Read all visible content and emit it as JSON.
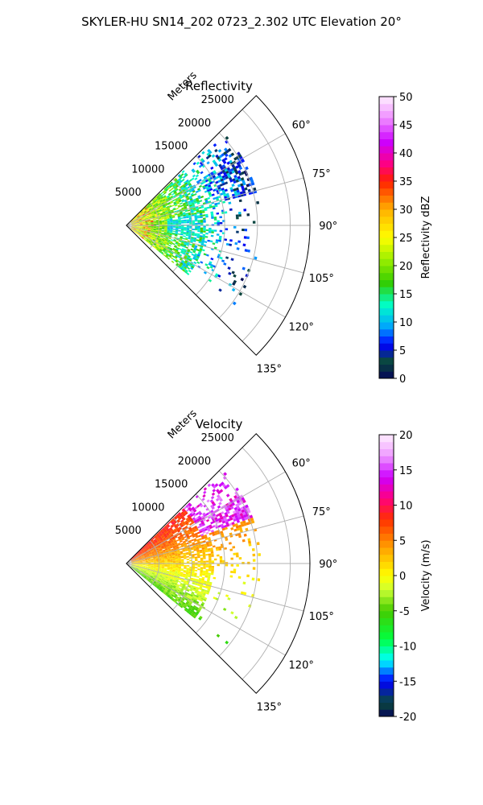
{
  "figure": {
    "title": "SKYLER-HU  SN14_202  0723_2.302 UTC Elevation 20°"
  },
  "chart_data": [
    {
      "type": "heatmap",
      "panel": "reflectivity",
      "title": "Reflectivity",
      "radial_label": "Meters",
      "radial_ticks": [
        "5000",
        "10000",
        "15000",
        "20000",
        "25000"
      ],
      "range_max": 28000,
      "angle_ticks": [
        "60°",
        "75°",
        "90°",
        "105°",
        "120°",
        "135°"
      ],
      "angle_range_deg": [
        45,
        135
      ],
      "grid": true,
      "colorbar": {
        "label": "Reflectivity dBZ",
        "min": 0,
        "max": 50,
        "ticks": [
          "0",
          "5",
          "10",
          "15",
          "20",
          "25",
          "30",
          "35",
          "40",
          "45",
          "50"
        ],
        "stops": [
          {
            "v": 0,
            "c": "#05055a"
          },
          {
            "v": 3,
            "c": "#0a4a3a"
          },
          {
            "v": 6,
            "c": "#0000ff"
          },
          {
            "v": 9,
            "c": "#00a0ff"
          },
          {
            "v": 13,
            "c": "#00ffc8"
          },
          {
            "v": 17,
            "c": "#33cc00"
          },
          {
            "v": 21,
            "c": "#99ee00"
          },
          {
            "v": 25,
            "c": "#ffff00"
          },
          {
            "v": 30,
            "c": "#ffb000"
          },
          {
            "v": 35,
            "c": "#ff2000"
          },
          {
            "v": 38,
            "c": "#ff0080"
          },
          {
            "v": 42,
            "c": "#cc00ff"
          },
          {
            "v": 46,
            "c": "#ee88ff"
          },
          {
            "v": 50,
            "c": "#ffeeff"
          }
        ]
      }
    },
    {
      "type": "heatmap",
      "panel": "velocity",
      "title": "Velocity",
      "radial_label": "Meters",
      "radial_ticks": [
        "5000",
        "10000",
        "15000",
        "20000",
        "25000"
      ],
      "range_max": 28000,
      "angle_ticks": [
        "60°",
        "75°",
        "90°",
        "105°",
        "120°",
        "135°"
      ],
      "angle_range_deg": [
        45,
        135
      ],
      "grid": true,
      "colorbar": {
        "label": "Velocity (m/s)",
        "min": -20,
        "max": 20,
        "ticks": [
          "-20",
          "-15",
          "-10",
          "-5",
          "0",
          "5",
          "10",
          "15",
          "20"
        ],
        "stops": [
          {
            "v": -20,
            "c": "#05055a"
          },
          {
            "v": -18,
            "c": "#0a4a3a"
          },
          {
            "v": -15,
            "c": "#0000ff"
          },
          {
            "v": -12,
            "c": "#00ffff"
          },
          {
            "v": -9,
            "c": "#00ff40"
          },
          {
            "v": -5,
            "c": "#44cc00"
          },
          {
            "v": -2,
            "c": "#ccff33"
          },
          {
            "v": 0,
            "c": "#ffff00"
          },
          {
            "v": 4,
            "c": "#ffa000"
          },
          {
            "v": 8,
            "c": "#ff3000"
          },
          {
            "v": 11,
            "c": "#ff0080"
          },
          {
            "v": 14,
            "c": "#cc00ff"
          },
          {
            "v": 17,
            "c": "#ee99ff"
          },
          {
            "v": 20,
            "c": "#ffeeff"
          }
        ]
      }
    }
  ]
}
